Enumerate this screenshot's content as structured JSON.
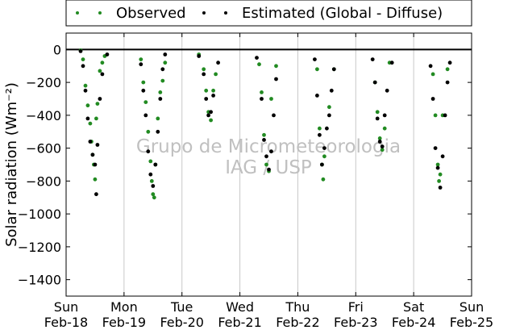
{
  "chart_data": {
    "type": "scatter",
    "title": "",
    "xlabel": "",
    "ylabel": "Solar radiation (Wm⁻²)",
    "ylim": [
      -1500,
      100
    ],
    "yticks": [
      0,
      -200,
      -400,
      -600,
      -800,
      -1000,
      -1200,
      -1400
    ],
    "xticks": [
      {
        "day": "Sun",
        "date": "Feb-18"
      },
      {
        "day": "Mon",
        "date": "Feb-19"
      },
      {
        "day": "Tue",
        "date": "Feb-20"
      },
      {
        "day": "Wed",
        "date": "Feb-21"
      },
      {
        "day": "Thu",
        "date": "Feb-22"
      },
      {
        "day": "Fri",
        "date": "Feb-23"
      },
      {
        "day": "Sat",
        "date": "Feb-24"
      },
      {
        "day": "Sun",
        "date": "Feb-25"
      }
    ],
    "grid": "vertical",
    "legend_position": "top",
    "watermark": [
      "Grupo de Micrometeorologia",
      "IAG / USP"
    ],
    "series": [
      {
        "name": "Observed",
        "color": "#228b22",
        "points": [
          [
            "Feb-18 06:00",
            -5
          ],
          [
            "Feb-18 07:00",
            -60
          ],
          [
            "Feb-18 08:00",
            -220
          ],
          [
            "Feb-18 09:00",
            -340
          ],
          [
            "Feb-18 10:00",
            -450
          ],
          [
            "Feb-18 10:30",
            -560
          ],
          [
            "Feb-18 11:00",
            -640
          ],
          [
            "Feb-18 11:30",
            -700
          ],
          [
            "Feb-18 12:00",
            -790
          ],
          [
            "Feb-18 12:30",
            -420
          ],
          [
            "Feb-18 13:00",
            -330
          ],
          [
            "Feb-18 14:00",
            -130
          ],
          [
            "Feb-18 15:00",
            -80
          ],
          [
            "Feb-18 16:00",
            -40
          ],
          [
            "Feb-19 07:00",
            -60
          ],
          [
            "Feb-19 08:00",
            -200
          ],
          [
            "Feb-19 09:00",
            -320
          ],
          [
            "Feb-19 10:00",
            -500
          ],
          [
            "Feb-19 11:00",
            -680
          ],
          [
            "Feb-19 11:30",
            -800
          ],
          [
            "Feb-19 12:00",
            -880
          ],
          [
            "Feb-19 12:30",
            -900
          ],
          [
            "Feb-19 13:00",
            -700
          ],
          [
            "Feb-19 14:00",
            -420
          ],
          [
            "Feb-19 15:00",
            -260
          ],
          [
            "Feb-19 16:00",
            -190
          ],
          [
            "Feb-19 17:00",
            -80
          ],
          [
            "Feb-20 07:00",
            -30
          ],
          [
            "Feb-20 09:00",
            -120
          ],
          [
            "Feb-20 10:00",
            -250
          ],
          [
            "Feb-20 11:00",
            -380
          ],
          [
            "Feb-20 12:00",
            -430
          ],
          [
            "Feb-20 13:00",
            -250
          ],
          [
            "Feb-20 14:00",
            -150
          ],
          [
            "Feb-21 08:00",
            -90
          ],
          [
            "Feb-21 09:00",
            -260
          ],
          [
            "Feb-21 10:00",
            -520
          ],
          [
            "Feb-21 11:00",
            -700
          ],
          [
            "Feb-21 12:00",
            -740
          ],
          [
            "Feb-21 13:00",
            -300
          ],
          [
            "Feb-21 15:00",
            -100
          ],
          [
            "Feb-22 08:00",
            -120
          ],
          [
            "Feb-22 09:00",
            -480
          ],
          [
            "Feb-22 10:00",
            -700
          ],
          [
            "Feb-22 10:30",
            -790
          ],
          [
            "Feb-22 11:00",
            -650
          ],
          [
            "Feb-22 13:00",
            -350
          ],
          [
            "Feb-22 15:00",
            -120
          ],
          [
            "Feb-23 08:00",
            -200
          ],
          [
            "Feb-23 09:00",
            -380
          ],
          [
            "Feb-23 10:00",
            -540
          ],
          [
            "Feb-23 11:00",
            -610
          ],
          [
            "Feb-23 12:00",
            -480
          ],
          [
            "Feb-23 14:00",
            -80
          ],
          [
            "Feb-24 08:00",
            -150
          ],
          [
            "Feb-24 09:00",
            -400
          ],
          [
            "Feb-24 10:00",
            -700
          ],
          [
            "Feb-24 10:30",
            -800
          ],
          [
            "Feb-24 11:00",
            -760
          ],
          [
            "Feb-24 12:00",
            -400
          ],
          [
            "Feb-24 14:00",
            -120
          ]
        ]
      },
      {
        "name": "Estimated (Global - Diffuse)",
        "color": "#000000",
        "points": [
          [
            "Feb-18 06:00",
            -10
          ],
          [
            "Feb-18 07:00",
            -100
          ],
          [
            "Feb-18 08:00",
            -250
          ],
          [
            "Feb-18 09:00",
            -420
          ],
          [
            "Feb-18 10:00",
            -560
          ],
          [
            "Feb-18 11:00",
            -640
          ],
          [
            "Feb-18 12:00",
            -700
          ],
          [
            "Feb-18 12:30",
            -880
          ],
          [
            "Feb-18 13:00",
            -580
          ],
          [
            "Feb-18 14:00",
            -300
          ],
          [
            "Feb-18 15:00",
            -150
          ],
          [
            "Feb-18 17:00",
            -30
          ],
          [
            "Feb-19 07:00",
            -90
          ],
          [
            "Feb-19 08:00",
            -250
          ],
          [
            "Feb-19 09:00",
            -400
          ],
          [
            "Feb-19 10:00",
            -620
          ],
          [
            "Feb-19 11:00",
            -760
          ],
          [
            "Feb-19 12:00",
            -830
          ],
          [
            "Feb-19 13:00",
            -700
          ],
          [
            "Feb-19 14:00",
            -500
          ],
          [
            "Feb-19 15:00",
            -300
          ],
          [
            "Feb-19 16:00",
            -120
          ],
          [
            "Feb-19 17:00",
            -30
          ],
          [
            "Feb-20 07:00",
            -40
          ],
          [
            "Feb-20 09:00",
            -150
          ],
          [
            "Feb-20 10:00",
            -300
          ],
          [
            "Feb-20 11:00",
            -400
          ],
          [
            "Feb-20 12:00",
            -380
          ],
          [
            "Feb-20 13:00",
            -280
          ],
          [
            "Feb-20 15:00",
            -80
          ],
          [
            "Feb-21 07:00",
            -50
          ],
          [
            "Feb-21 09:00",
            -300
          ],
          [
            "Feb-21 10:00",
            -550
          ],
          [
            "Feb-21 11:00",
            -650
          ],
          [
            "Feb-21 12:00",
            -730
          ],
          [
            "Feb-21 13:00",
            -620
          ],
          [
            "Feb-21 14:00",
            -400
          ],
          [
            "Feb-21 15:00",
            -180
          ],
          [
            "Feb-22 07:00",
            -60
          ],
          [
            "Feb-22 08:00",
            -280
          ],
          [
            "Feb-22 09:00",
            -520
          ],
          [
            "Feb-22 10:00",
            -700
          ],
          [
            "Feb-22 11:00",
            -600
          ],
          [
            "Feb-22 12:00",
            -480
          ],
          [
            "Feb-22 13:00",
            -400
          ],
          [
            "Feb-22 14:00",
            -250
          ],
          [
            "Feb-22 15:00",
            -120
          ],
          [
            "Feb-23 07:00",
            -60
          ],
          [
            "Feb-23 08:00",
            -200
          ],
          [
            "Feb-23 09:00",
            -420
          ],
          [
            "Feb-23 10:00",
            -560
          ],
          [
            "Feb-23 11:00",
            -590
          ],
          [
            "Feb-23 12:00",
            -400
          ],
          [
            "Feb-23 13:00",
            -250
          ],
          [
            "Feb-23 15:00",
            -80
          ],
          [
            "Feb-24 07:00",
            -100
          ],
          [
            "Feb-24 08:00",
            -300
          ],
          [
            "Feb-24 09:00",
            -600
          ],
          [
            "Feb-24 10:00",
            -720
          ],
          [
            "Feb-24 11:00",
            -840
          ],
          [
            "Feb-24 12:00",
            -650
          ],
          [
            "Feb-24 13:00",
            -400
          ],
          [
            "Feb-24 14:00",
            -200
          ],
          [
            "Feb-24 15:00",
            -80
          ]
        ]
      }
    ]
  }
}
